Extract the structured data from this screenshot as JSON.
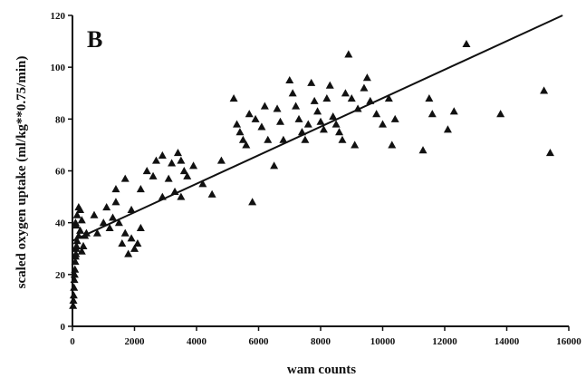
{
  "chart_data": {
    "type": "scatter",
    "panel_label": "B",
    "xlabel": "wam counts",
    "ylabel": "scaled oxygen uptake (ml/kg**0.75/min)",
    "xlim": [
      0,
      16000
    ],
    "ylim": [
      0,
      120
    ],
    "xticks": [
      0,
      2000,
      4000,
      6000,
      8000,
      10000,
      12000,
      14000,
      16000
    ],
    "yticks": [
      0,
      20,
      40,
      60,
      80,
      100,
      120
    ],
    "grid": false,
    "legend": "none",
    "marker": "triangle",
    "colors": {
      "marker": "#111111",
      "axis": "#111111",
      "fit_line": "#111111"
    },
    "fit_line": {
      "x": [
        0,
        15800
      ],
      "y": [
        33,
        120
      ]
    },
    "series": [
      {
        "points": [
          [
            20,
            8
          ],
          [
            30,
            10
          ],
          [
            40,
            12
          ],
          [
            50,
            15
          ],
          [
            60,
            18
          ],
          [
            70,
            20
          ],
          [
            80,
            22
          ],
          [
            90,
            25
          ],
          [
            100,
            27
          ],
          [
            110,
            28
          ],
          [
            120,
            30
          ],
          [
            130,
            31
          ],
          [
            150,
            33
          ],
          [
            200,
            35
          ],
          [
            250,
            37
          ],
          [
            300,
            29
          ],
          [
            350,
            31
          ],
          [
            400,
            35
          ],
          [
            450,
            36
          ],
          [
            100,
            40
          ],
          [
            150,
            43
          ],
          [
            200,
            46
          ],
          [
            250,
            45
          ],
          [
            300,
            41
          ],
          [
            120,
            39
          ],
          [
            700,
            43
          ],
          [
            800,
            36
          ],
          [
            1000,
            40
          ],
          [
            1100,
            46
          ],
          [
            1200,
            38
          ],
          [
            1300,
            42
          ],
          [
            1400,
            48
          ],
          [
            1500,
            40
          ],
          [
            1600,
            32
          ],
          [
            1700,
            36
          ],
          [
            1800,
            28
          ],
          [
            1900,
            34
          ],
          [
            2000,
            30
          ],
          [
            2100,
            32
          ],
          [
            2200,
            38
          ],
          [
            1900,
            45
          ],
          [
            1400,
            53
          ],
          [
            1700,
            57
          ],
          [
            2200,
            53
          ],
          [
            2400,
            60
          ],
          [
            2600,
            58
          ],
          [
            2700,
            64
          ],
          [
            2900,
            66
          ],
          [
            2900,
            50
          ],
          [
            3100,
            57
          ],
          [
            3200,
            63
          ],
          [
            3400,
            67
          ],
          [
            3500,
            64
          ],
          [
            3600,
            60
          ],
          [
            3700,
            58
          ],
          [
            3900,
            62
          ],
          [
            3300,
            52
          ],
          [
            3500,
            50
          ],
          [
            4200,
            55
          ],
          [
            4500,
            51
          ],
          [
            4800,
            64
          ],
          [
            5800,
            48
          ],
          [
            5200,
            88
          ],
          [
            5300,
            78
          ],
          [
            5400,
            75
          ],
          [
            5500,
            72
          ],
          [
            5600,
            70
          ],
          [
            5700,
            82
          ],
          [
            5900,
            80
          ],
          [
            6100,
            77
          ],
          [
            6200,
            85
          ],
          [
            6300,
            72
          ],
          [
            6500,
            62
          ],
          [
            6600,
            84
          ],
          [
            6700,
            79
          ],
          [
            6800,
            72
          ],
          [
            7000,
            95
          ],
          [
            7100,
            90
          ],
          [
            7200,
            85
          ],
          [
            7300,
            80
          ],
          [
            7400,
            75
          ],
          [
            7500,
            72
          ],
          [
            7600,
            78
          ],
          [
            7700,
            94
          ],
          [
            7800,
            87
          ],
          [
            7900,
            83
          ],
          [
            8000,
            79
          ],
          [
            8100,
            76
          ],
          [
            8200,
            88
          ],
          [
            8300,
            93
          ],
          [
            8400,
            81
          ],
          [
            8500,
            78
          ],
          [
            8600,
            75
          ],
          [
            8700,
            72
          ],
          [
            8800,
            90
          ],
          [
            8900,
            105
          ],
          [
            9000,
            88
          ],
          [
            9100,
            70
          ],
          [
            9200,
            84
          ],
          [
            9400,
            92
          ],
          [
            9500,
            96
          ],
          [
            9600,
            87
          ],
          [
            9800,
            82
          ],
          [
            10000,
            78
          ],
          [
            10200,
            88
          ],
          [
            10300,
            70
          ],
          [
            10400,
            80
          ],
          [
            11300,
            68
          ],
          [
            11500,
            88
          ],
          [
            11600,
            82
          ],
          [
            12100,
            76
          ],
          [
            12300,
            83
          ],
          [
            12700,
            109
          ],
          [
            13800,
            82
          ],
          [
            15200,
            91
          ],
          [
            15400,
            67
          ]
        ]
      }
    ]
  }
}
